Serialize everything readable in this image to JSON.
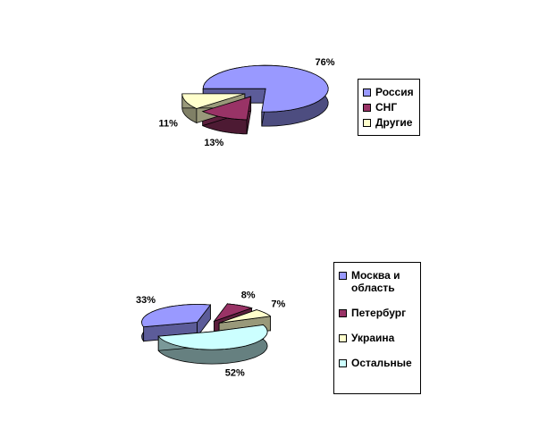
{
  "chart_data": [
    {
      "type": "pie",
      "categories": [
        "Россия",
        "СНГ",
        "Другие"
      ],
      "values": [
        76,
        13,
        11
      ],
      "value_labels": [
        "76%",
        "13%",
        "11%"
      ],
      "colors": [
        "#9999ff",
        "#993366",
        "#ffffcc"
      ],
      "legend": "right"
    },
    {
      "type": "pie",
      "categories": [
        "Москва и область",
        "Петербург",
        "Украина",
        "Остальные"
      ],
      "values": [
        33,
        8,
        7,
        52
      ],
      "value_labels": [
        "33%",
        "8%",
        "7%",
        "52%"
      ],
      "colors": [
        "#9999ff",
        "#993366",
        "#ffffcc",
        "#ccffff"
      ],
      "legend": "right"
    }
  ]
}
